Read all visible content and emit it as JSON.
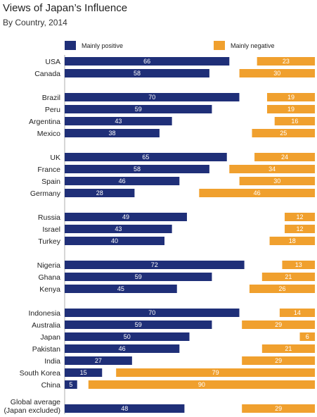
{
  "chart_data": {
    "type": "bar",
    "title": "Views of Japan’s Influence",
    "subtitle": "By Country, 2014",
    "series": [
      {
        "name": "Mainly positive",
        "color": "#1f2f78"
      },
      {
        "name": "Mainly negative",
        "color": "#f0a02e"
      }
    ],
    "groups": [
      [
        {
          "label": [
            "USA"
          ],
          "positive": 66,
          "negative": 23
        },
        {
          "label": [
            "Canada"
          ],
          "positive": 58,
          "negative": 30
        }
      ],
      [
        {
          "label": [
            "Brazil"
          ],
          "positive": 70,
          "negative": 19
        },
        {
          "label": [
            "Peru"
          ],
          "positive": 59,
          "negative": 19
        },
        {
          "label": [
            "Argentina"
          ],
          "positive": 43,
          "negative": 16
        },
        {
          "label": [
            "Mexico"
          ],
          "positive": 38,
          "negative": 25
        }
      ],
      [
        {
          "label": [
            "UK"
          ],
          "positive": 65,
          "negative": 24
        },
        {
          "label": [
            "France"
          ],
          "positive": 58,
          "negative": 34
        },
        {
          "label": [
            "Spain"
          ],
          "positive": 46,
          "negative": 30
        },
        {
          "label": [
            "Germany"
          ],
          "positive": 28,
          "negative": 46
        }
      ],
      [
        {
          "label": [
            "Russia"
          ],
          "positive": 49,
          "negative": 12
        },
        {
          "label": [
            "Israel"
          ],
          "positive": 43,
          "negative": 12
        },
        {
          "label": [
            "Turkey"
          ],
          "positive": 40,
          "negative": 18
        }
      ],
      [
        {
          "label": [
            "Nigeria"
          ],
          "positive": 72,
          "negative": 13
        },
        {
          "label": [
            "Ghana"
          ],
          "positive": 59,
          "negative": 21
        },
        {
          "label": [
            "Kenya"
          ],
          "positive": 45,
          "negative": 26
        }
      ],
      [
        {
          "label": [
            "Indonesia"
          ],
          "positive": 70,
          "negative": 14
        },
        {
          "label": [
            "Australia"
          ],
          "positive": 59,
          "negative": 29
        },
        {
          "label": [
            "Japan"
          ],
          "positive": 50,
          "negative": 6
        },
        {
          "label": [
            "Pakistan"
          ],
          "positive": 46,
          "negative": 21
        },
        {
          "label": [
            "India"
          ],
          "positive": 27,
          "negative": 29
        },
        {
          "label": [
            "South Korea"
          ],
          "positive": 15,
          "negative": 79
        },
        {
          "label": [
            "China"
          ],
          "positive": 5,
          "negative": 90
        }
      ],
      [
        {
          "label": [
            "Global average",
            "(Japan excluded)"
          ],
          "positive": 48,
          "negative": 29
        }
      ]
    ]
  }
}
